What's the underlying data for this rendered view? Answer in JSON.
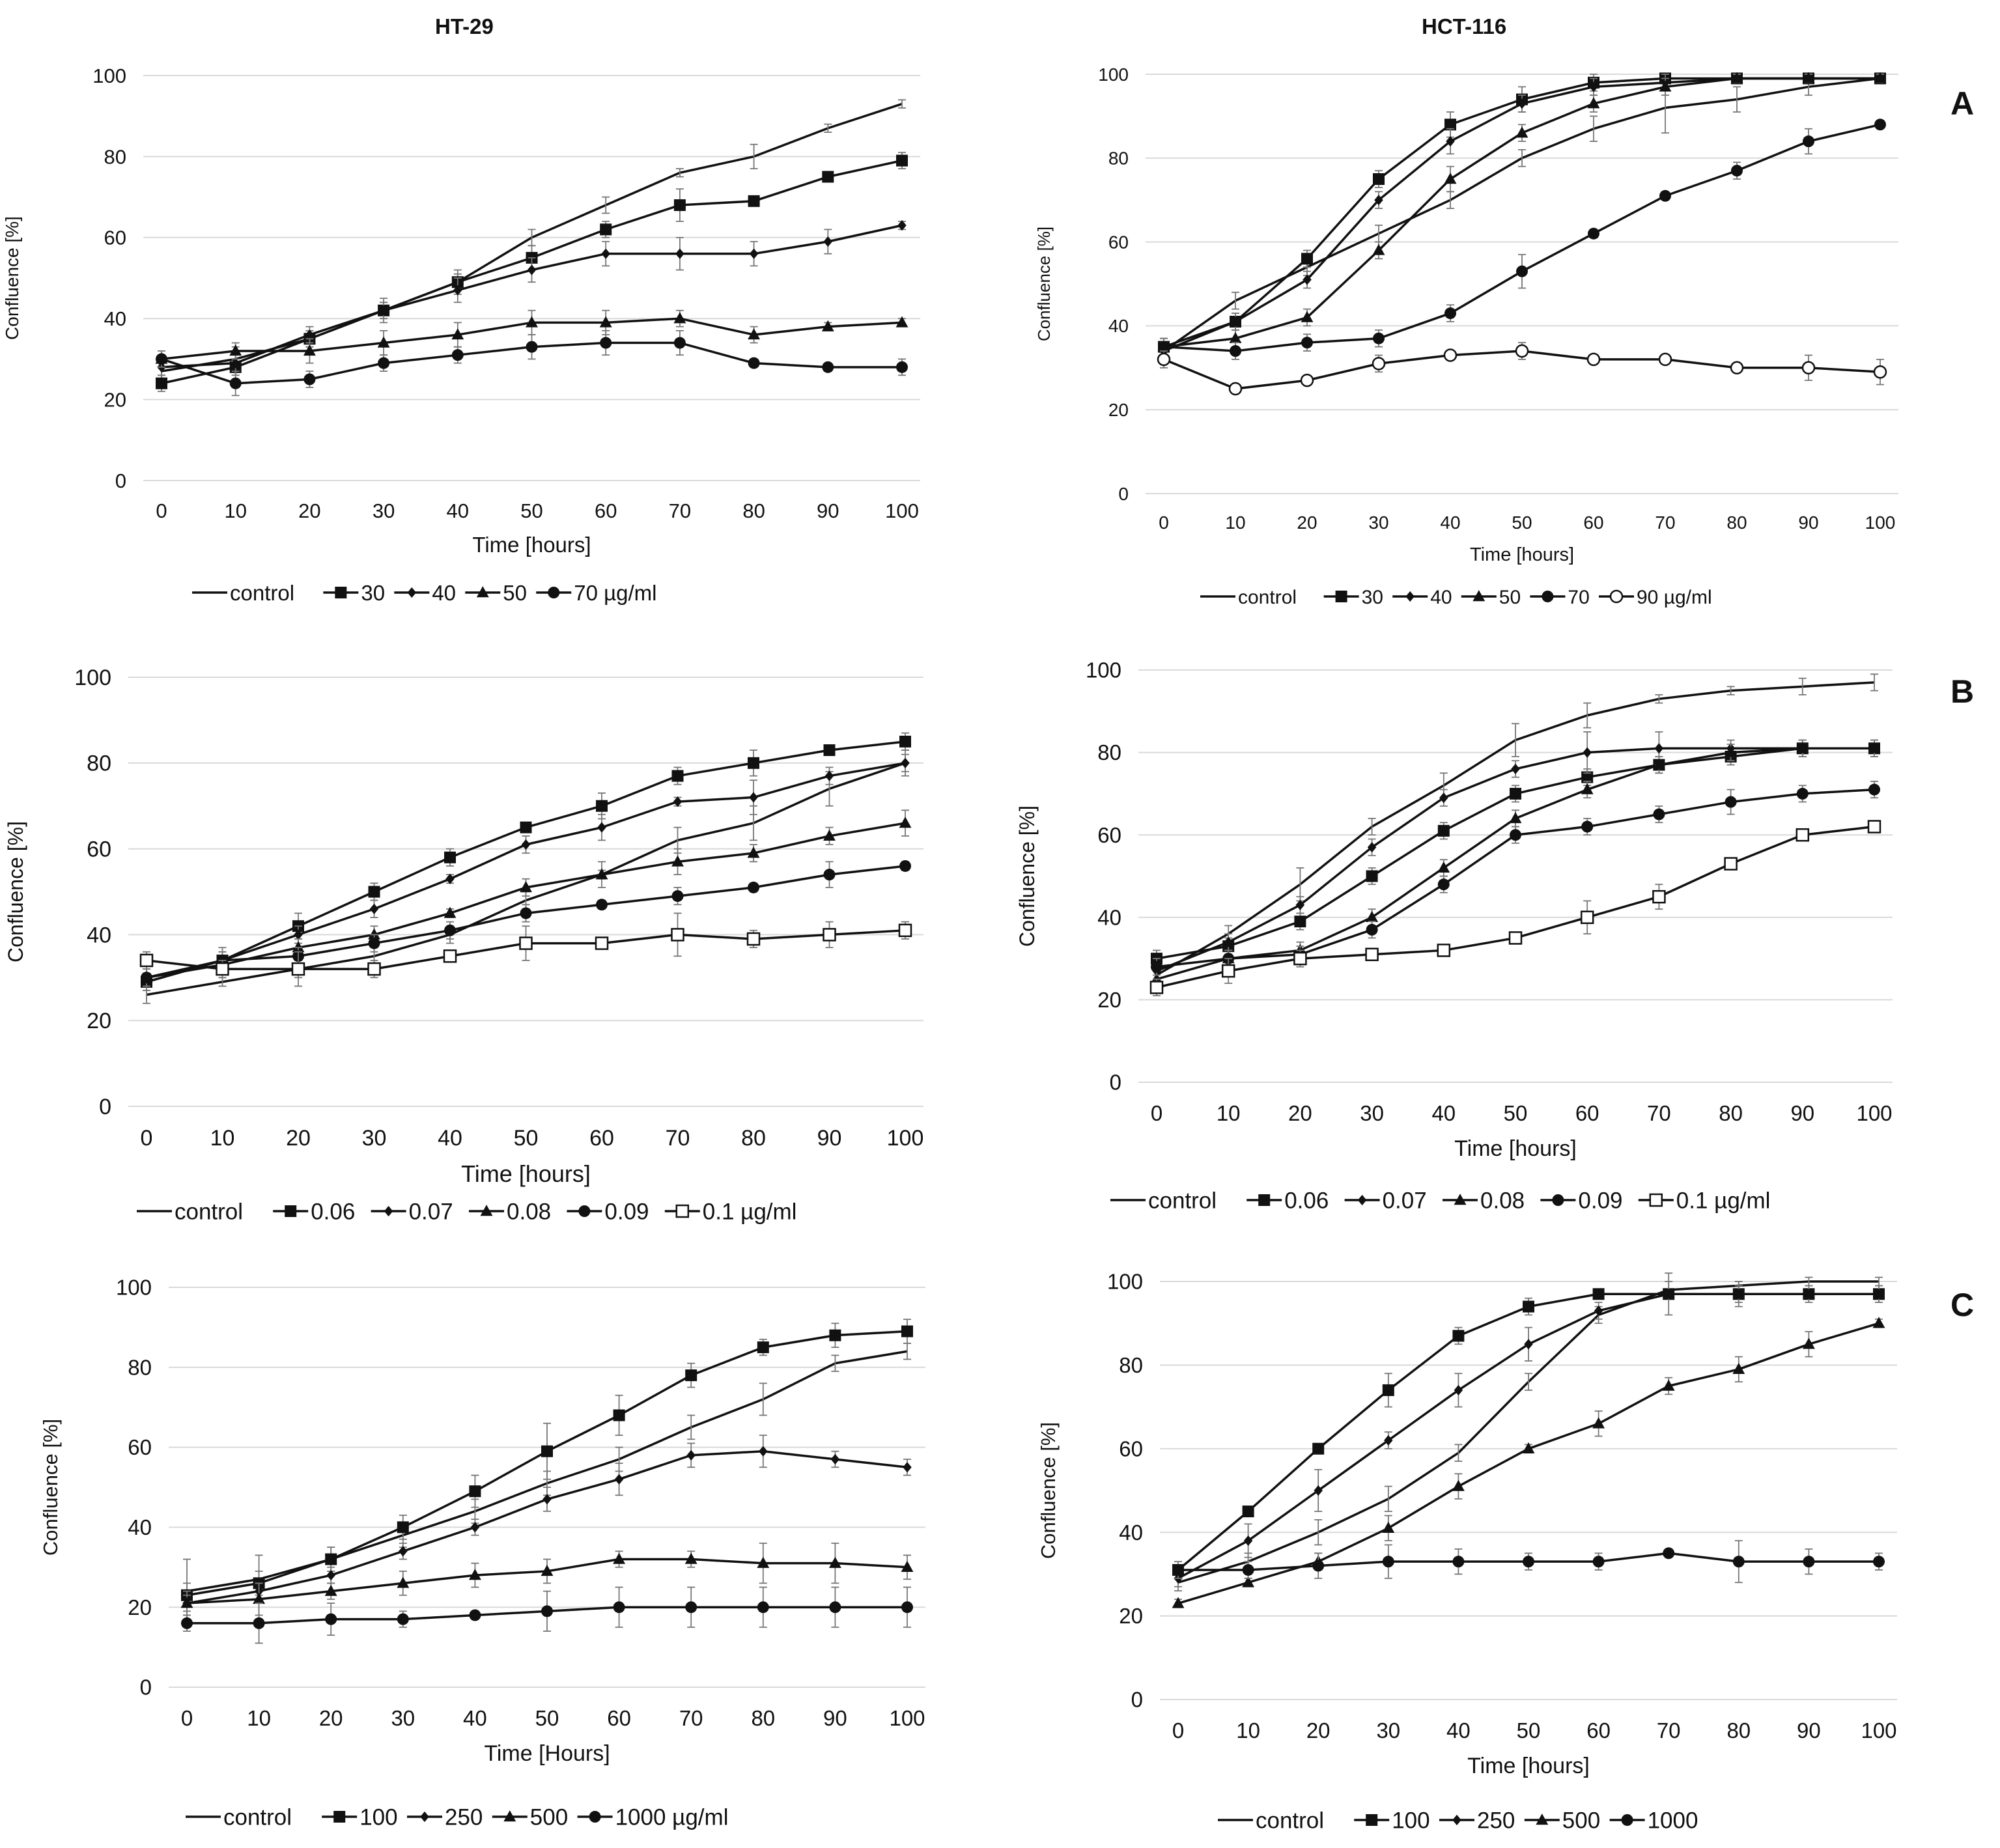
{
  "titles": {
    "left": "HT-29",
    "right": "HCT-116"
  },
  "panel_labels": {
    "a": "A",
    "b": "B",
    "c": "C"
  },
  "chart_data": [
    {
      "id": "A-HT29",
      "type": "line",
      "title": "HT-29",
      "xlabel": "Time [hours]",
      "ylabel": "Confluence [%]",
      "xlim": [
        0,
        100
      ],
      "ylim": [
        0,
        100
      ],
      "x": [
        0,
        10,
        20,
        30,
        40,
        50,
        60,
        70,
        80,
        90,
        100
      ],
      "yticks": [
        0,
        20,
        40,
        60,
        80,
        100
      ],
      "legend": [
        "control",
        "30",
        "40",
        "50",
        "70 µg/ml"
      ],
      "series": [
        {
          "name": "control",
          "marker": "none",
          "values": [
            27,
            30,
            35,
            42,
            49,
            60,
            68,
            76,
            80,
            87,
            93
          ],
          "err": [
            2,
            2,
            2,
            2,
            2,
            2,
            2,
            1,
            3,
            1,
            1
          ]
        },
        {
          "name": "30",
          "marker": "square",
          "values": [
            24,
            28,
            35,
            42,
            49,
            55,
            62,
            68,
            69,
            75,
            79
          ],
          "err": [
            2,
            2,
            2,
            2,
            3,
            3,
            2,
            4,
            1,
            1,
            2
          ]
        },
        {
          "name": "40",
          "marker": "diamond",
          "values": [
            28,
            29,
            36,
            42,
            47,
            52,
            56,
            56,
            56,
            59,
            63
          ],
          "err": [
            2,
            4,
            2,
            3,
            3,
            3,
            3,
            4,
            3,
            3,
            1
          ]
        },
        {
          "name": "50",
          "marker": "triangle",
          "values": [
            30,
            32,
            32,
            34,
            36,
            39,
            39,
            40,
            36,
            38,
            39
          ],
          "err": [
            2,
            2,
            3,
            3,
            3,
            3,
            3,
            2,
            2,
            1,
            1
          ]
        },
        {
          "name": "70",
          "marker": "circle",
          "values": [
            30,
            24,
            25,
            29,
            31,
            33,
            34,
            34,
            29,
            28,
            28
          ],
          "err": [
            1,
            3,
            2,
            2,
            2,
            3,
            3,
            3,
            1,
            1,
            2
          ]
        }
      ]
    },
    {
      "id": "A-HCT116",
      "type": "line",
      "title": "HCT-116",
      "xlabel": "Time [hours]",
      "ylabel": "Confluence [%]",
      "xlim": [
        0,
        100
      ],
      "ylim": [
        0,
        100
      ],
      "x": [
        0,
        10,
        20,
        30,
        40,
        50,
        60,
        70,
        80,
        90,
        100
      ],
      "yticks": [
        0,
        20,
        40,
        60,
        80,
        100
      ],
      "legend": [
        "control",
        "30",
        "40",
        "50",
        "70",
        "90 µg/ml"
      ],
      "series": [
        {
          "name": "control",
          "marker": "none",
          "values": [
            34,
            46,
            54,
            62,
            70,
            80,
            87,
            92,
            94,
            97,
            99
          ],
          "err": [
            2,
            2,
            2,
            2,
            2,
            2,
            3,
            6,
            3,
            2,
            1
          ]
        },
        {
          "name": "30",
          "marker": "square",
          "values": [
            35,
            41,
            56,
            75,
            88,
            94,
            98,
            99,
            99,
            99,
            99
          ],
          "err": [
            2,
            2,
            2,
            2,
            3,
            3,
            2,
            1,
            1,
            1,
            1
          ]
        },
        {
          "name": "40",
          "marker": "diamond",
          "values": [
            34,
            41,
            51,
            70,
            84,
            93,
            97,
            98,
            99,
            99,
            99
          ],
          "err": [
            2,
            2,
            2,
            2,
            3,
            2,
            2,
            2,
            1,
            1,
            1
          ]
        },
        {
          "name": "50",
          "marker": "triangle",
          "values": [
            35,
            37,
            42,
            58,
            75,
            86,
            93,
            97,
            99,
            99,
            99
          ],
          "err": [
            2,
            2,
            2,
            2,
            3,
            2,
            2,
            2,
            1,
            1,
            1
          ]
        },
        {
          "name": "70",
          "marker": "circle",
          "values": [
            35,
            34,
            36,
            37,
            43,
            53,
            62,
            71,
            77,
            84,
            88
          ],
          "err": [
            2,
            2,
            2,
            2,
            2,
            4,
            1,
            1,
            2,
            3,
            1
          ]
        },
        {
          "name": "90",
          "marker": "opencircle",
          "values": [
            32,
            25,
            27,
            31,
            33,
            34,
            32,
            32,
            30,
            30,
            29
          ],
          "err": [
            2,
            1,
            1,
            2,
            1,
            2,
            1,
            1,
            1,
            3,
            3
          ]
        }
      ]
    },
    {
      "id": "B-HT29",
      "type": "line",
      "xlabel": "Time [hours]",
      "ylabel": "Confluence [%]",
      "xlim": [
        0,
        100
      ],
      "ylim": [
        0,
        100
      ],
      "x": [
        0,
        10,
        20,
        30,
        40,
        50,
        60,
        70,
        80,
        90,
        100
      ],
      "yticks": [
        0,
        20,
        40,
        60,
        80,
        100
      ],
      "legend": [
        "control",
        "0.06",
        "0.07",
        "0.08",
        "0.09",
        "0.1 µg/ml"
      ],
      "series": [
        {
          "name": "control",
          "marker": "none",
          "values": [
            26,
            29,
            32,
            35,
            40,
            48,
            54,
            62,
            66,
            74,
            80
          ],
          "err": [
            2,
            1,
            2,
            2,
            2,
            2,
            3,
            3,
            4,
            4,
            3
          ]
        },
        {
          "name": "0.06",
          "marker": "square",
          "values": [
            29,
            34,
            42,
            50,
            58,
            65,
            70,
            77,
            80,
            83,
            85
          ],
          "err": [
            2,
            3,
            3,
            2,
            2,
            1,
            3,
            2,
            3,
            1,
            2
          ]
        },
        {
          "name": "0.07",
          "marker": "diamond",
          "values": [
            29,
            34,
            40,
            46,
            53,
            61,
            65,
            71,
            72,
            77,
            80
          ],
          "err": [
            2,
            2,
            2,
            2,
            1,
            2,
            3,
            1,
            4,
            2,
            2
          ]
        },
        {
          "name": "0.08",
          "marker": "triangle",
          "values": [
            30,
            33,
            37,
            40,
            45,
            51,
            54,
            57,
            59,
            63,
            66
          ],
          "err": [
            2,
            2,
            2,
            2,
            1,
            2,
            1,
            3,
            2,
            2,
            3
          ]
        },
        {
          "name": "0.09",
          "marker": "circle",
          "values": [
            30,
            34,
            35,
            38,
            41,
            45,
            47,
            49,
            51,
            54,
            56
          ],
          "err": [
            2,
            2,
            2,
            2,
            2,
            2,
            1,
            2,
            1,
            3,
            1
          ]
        },
        {
          "name": "0.1",
          "marker": "opensquare",
          "values": [
            34,
            32,
            32,
            32,
            35,
            38,
            38,
            40,
            39,
            40,
            41
          ],
          "err": [
            2,
            2,
            4,
            2,
            1,
            4,
            1,
            5,
            2,
            3,
            2
          ]
        }
      ]
    },
    {
      "id": "B-HCT116",
      "type": "line",
      "xlabel": "Time [hours]",
      "ylabel": "Confluence [%]",
      "xlim": [
        0,
        100
      ],
      "ylim": [
        0,
        100
      ],
      "x": [
        0,
        10,
        20,
        30,
        40,
        50,
        60,
        70,
        80,
        90,
        100
      ],
      "yticks": [
        0,
        20,
        40,
        60,
        80,
        100
      ],
      "legend": [
        "control",
        "0.06",
        "0.07",
        "0.08",
        "0.09",
        "0.1 µg/ml"
      ],
      "series": [
        {
          "name": "control",
          "marker": "none",
          "values": [
            26,
            36,
            48,
            62,
            72,
            83,
            89,
            93,
            95,
            96,
            97
          ],
          "err": [
            2,
            2,
            4,
            2,
            3,
            4,
            3,
            1,
            1,
            2,
            2
          ]
        },
        {
          "name": "0.06",
          "marker": "square",
          "values": [
            30,
            33,
            39,
            50,
            61,
            70,
            74,
            77,
            79,
            81,
            81
          ],
          "err": [
            2,
            2,
            2,
            2,
            2,
            2,
            2,
            2,
            2,
            2,
            2
          ]
        },
        {
          "name": "0.07",
          "marker": "diamond",
          "values": [
            27,
            34,
            43,
            57,
            69,
            76,
            80,
            81,
            81,
            81,
            81
          ],
          "err": [
            2,
            2,
            2,
            2,
            2,
            2,
            5,
            4,
            2,
            2,
            2
          ]
        },
        {
          "name": "0.08",
          "marker": "triangle",
          "values": [
            25,
            30,
            32,
            40,
            52,
            64,
            71,
            77,
            80,
            81,
            81
          ],
          "err": [
            2,
            2,
            2,
            2,
            2,
            2,
            2,
            2,
            2,
            2,
            2
          ]
        },
        {
          "name": "0.09",
          "marker": "circle",
          "values": [
            28,
            30,
            31,
            37,
            48,
            60,
            62,
            65,
            68,
            70,
            71
          ],
          "err": [
            2,
            2,
            2,
            2,
            2,
            2,
            2,
            2,
            3,
            2,
            2
          ]
        },
        {
          "name": "0.1",
          "marker": "opensquare",
          "values": [
            23,
            27,
            30,
            31,
            32,
            35,
            40,
            45,
            53,
            60,
            62
          ],
          "err": [
            2,
            3,
            2,
            1,
            1,
            1,
            4,
            3,
            1,
            1,
            1
          ]
        }
      ]
    },
    {
      "id": "C-HT29",
      "type": "line",
      "xlabel": "Time [Hours]",
      "ylabel": "Confluence [%]",
      "xlim": [
        0,
        100
      ],
      "ylim": [
        0,
        100
      ],
      "x": [
        0,
        10,
        20,
        30,
        40,
        50,
        60,
        70,
        80,
        90,
        100
      ],
      "yticks": [
        0,
        20,
        40,
        60,
        80,
        100
      ],
      "legend": [
        "control",
        "100",
        "250",
        "500",
        "1000 µg/ml"
      ],
      "series": [
        {
          "name": "control",
          "marker": "none",
          "values": [
            24,
            27,
            32,
            38,
            44,
            51,
            57,
            65,
            72,
            81,
            84
          ],
          "err": [
            8,
            6,
            3,
            3,
            3,
            3,
            3,
            3,
            4,
            2,
            2
          ]
        },
        {
          "name": "100",
          "marker": "square",
          "values": [
            23,
            26,
            32,
            40,
            49,
            59,
            68,
            78,
            85,
            88,
            89
          ],
          "err": [
            3,
            3,
            3,
            3,
            4,
            7,
            5,
            3,
            2,
            3,
            3
          ]
        },
        {
          "name": "250",
          "marker": "diamond",
          "values": [
            21,
            24,
            28,
            34,
            40,
            47,
            52,
            58,
            59,
            57,
            55
          ],
          "err": [
            2,
            2,
            2,
            2,
            2,
            3,
            4,
            3,
            4,
            2,
            2
          ]
        },
        {
          "name": "500",
          "marker": "triangle",
          "values": [
            21,
            22,
            24,
            26,
            28,
            29,
            32,
            32,
            31,
            31,
            30
          ],
          "err": [
            3,
            4,
            2,
            3,
            3,
            3,
            2,
            2,
            5,
            5,
            3
          ]
        },
        {
          "name": "1000",
          "marker": "circle",
          "values": [
            16,
            16,
            17,
            17,
            18,
            19,
            20,
            20,
            20,
            20,
            20
          ],
          "err": [
            2,
            5,
            4,
            2,
            1,
            5,
            5,
            5,
            5,
            5,
            5
          ]
        }
      ]
    },
    {
      "id": "C-HCT116",
      "type": "line",
      "xlabel": "Time [hours]",
      "ylabel": "Confluence [%]",
      "xlim": [
        0,
        100
      ],
      "ylim": [
        0,
        100
      ],
      "x": [
        0,
        10,
        20,
        30,
        40,
        50,
        60,
        70,
        80,
        90,
        100
      ],
      "yticks": [
        0,
        20,
        40,
        60,
        80,
        100
      ],
      "legend": [
        "control",
        "100",
        "250",
        "500",
        "1000"
      ],
      "series": [
        {
          "name": "control",
          "marker": "none",
          "values": [
            28,
            33,
            40,
            48,
            59,
            76,
            92,
            98,
            99,
            100,
            100
          ],
          "err": [
            2,
            2,
            3,
            3,
            2,
            2,
            2,
            2,
            1,
            1,
            1
          ]
        },
        {
          "name": "100",
          "marker": "square",
          "values": [
            31,
            45,
            60,
            74,
            87,
            94,
            97,
            97,
            97,
            97,
            97
          ],
          "err": [
            1,
            1,
            1,
            4,
            2,
            2,
            1,
            1,
            2,
            1,
            2
          ]
        },
        {
          "name": "250",
          "marker": "diamond",
          "values": [
            29,
            38,
            50,
            62,
            74,
            85,
            93,
            97,
            97,
            97,
            97
          ],
          "err": [
            2,
            4,
            5,
            2,
            4,
            4,
            2,
            5,
            3,
            2,
            2
          ]
        },
        {
          "name": "500",
          "marker": "triangle",
          "values": [
            23,
            28,
            33,
            41,
            51,
            60,
            66,
            75,
            79,
            85,
            90
          ],
          "err": [
            1,
            1,
            2,
            3,
            3,
            1,
            3,
            2,
            3,
            3,
            1
          ]
        },
        {
          "name": "1000",
          "marker": "circle",
          "values": [
            31,
            31,
            32,
            33,
            33,
            33,
            33,
            35,
            33,
            33,
            33
          ],
          "err": [
            2,
            2,
            3,
            4,
            3,
            2,
            2,
            1,
            5,
            3,
            2
          ]
        }
      ]
    }
  ]
}
